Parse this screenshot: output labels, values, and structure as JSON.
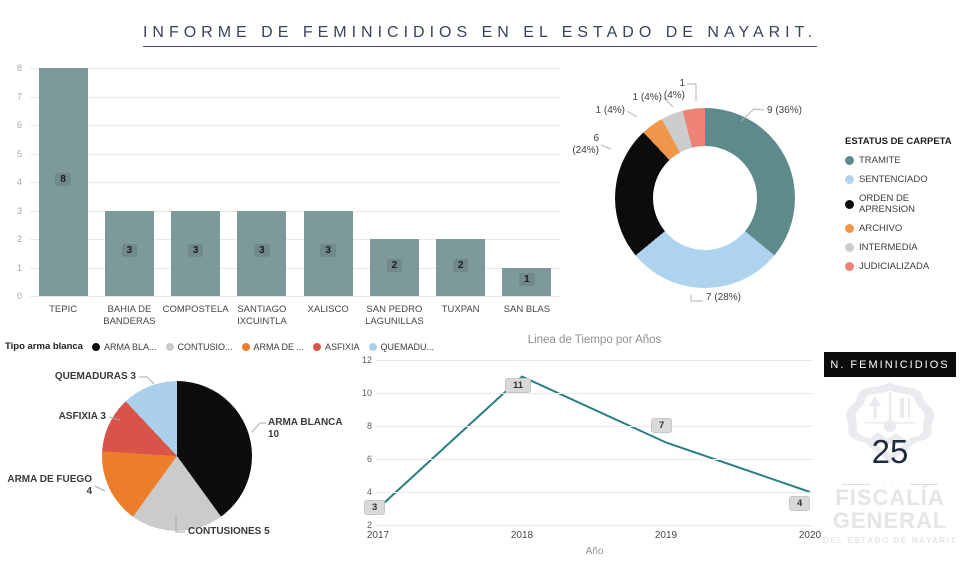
{
  "title": "INFORME DE FEMINICIDIOS EN EL ESTADO DE NAYARIT.",
  "kpi": {
    "label": "N. FEMINICIDIOS",
    "value": "25"
  },
  "watermark": {
    "name_line1": "FISCALÍA",
    "name_line2": "GENERAL",
    "subtitle": "DEL ESTADO DE NAYARIT"
  },
  "chart_data": [
    {
      "id": "feminicidios-por-municipio",
      "type": "bar",
      "title": "",
      "xlabel": "",
      "ylabel": "",
      "categories": [
        "TEPIC",
        "BAHIA DE BANDERAS",
        "COMPOSTELA",
        "SANTIAGO IXCUINTLA",
        "XALISCO",
        "SAN PEDRO LAGUNILLAS",
        "TUXPAN",
        "SAN BLAS"
      ],
      "values": [
        8,
        3,
        3,
        3,
        3,
        2,
        2,
        1
      ],
      "ylim": [
        0,
        8
      ],
      "yticks": [
        0,
        1,
        2,
        3,
        4,
        5,
        6,
        7,
        8
      ],
      "bar_color": "#7d999a",
      "grid": true
    },
    {
      "id": "estatus-de-carpeta",
      "type": "pie",
      "subtype": "donut",
      "legend_title": "ESTATUS DE CARPETA",
      "legend_position": "right",
      "labels": [
        "TRAMITE",
        "SENTENCIADO",
        "ORDEN DE APRENSION",
        "ARCHIVO",
        "INTERMEDIA",
        "JUDICIALIZADA"
      ],
      "values": [
        9,
        7,
        6,
        1,
        1,
        1
      ],
      "percents": [
        "36%",
        "28%",
        "24%",
        "4%",
        "4%",
        "4%"
      ],
      "callouts": [
        "9 (36%)",
        "7 (28%)",
        "6 (24%)",
        "1 (4%)",
        "1 (4%)",
        "1 (4%)"
      ],
      "colors": [
        "#5f8a8c",
        "#aed3ee",
        "#0c0c0c",
        "#f0964b",
        "#cccccc",
        "#ee8277"
      ]
    },
    {
      "id": "tipo-arma-blanca",
      "type": "pie",
      "legend_title": "Tipo arma blanca",
      "legend_position": "top",
      "legend_labels": [
        "ARMA BLA...",
        "CONTUSIO...",
        "ARMA DE ...",
        "ASFIXIA",
        "QUEMADU..."
      ],
      "labels": [
        "ARMA BLANCA",
        "CONTUSIONES",
        "ARMA DE FUEGO",
        "ASFIXIA",
        "QUEMADURAS"
      ],
      "values": [
        10,
        5,
        4,
        3,
        3
      ],
      "colors": [
        "#0c0c0c",
        "#cbcbcb",
        "#ec7d2b",
        "#d95448",
        "#abd0ec"
      ]
    },
    {
      "id": "linea-de-tiempo",
      "type": "line",
      "title": "Linea de Tiempo por Años",
      "xlabel": "Año",
      "x": [
        "2017",
        "2018",
        "2019",
        "2020"
      ],
      "values": [
        3,
        11,
        7,
        4
      ],
      "ylim": [
        2,
        12
      ],
      "yticks": [
        2,
        4,
        6,
        8,
        10,
        12
      ],
      "line_color": "#2a7f82",
      "grid": true
    }
  ]
}
